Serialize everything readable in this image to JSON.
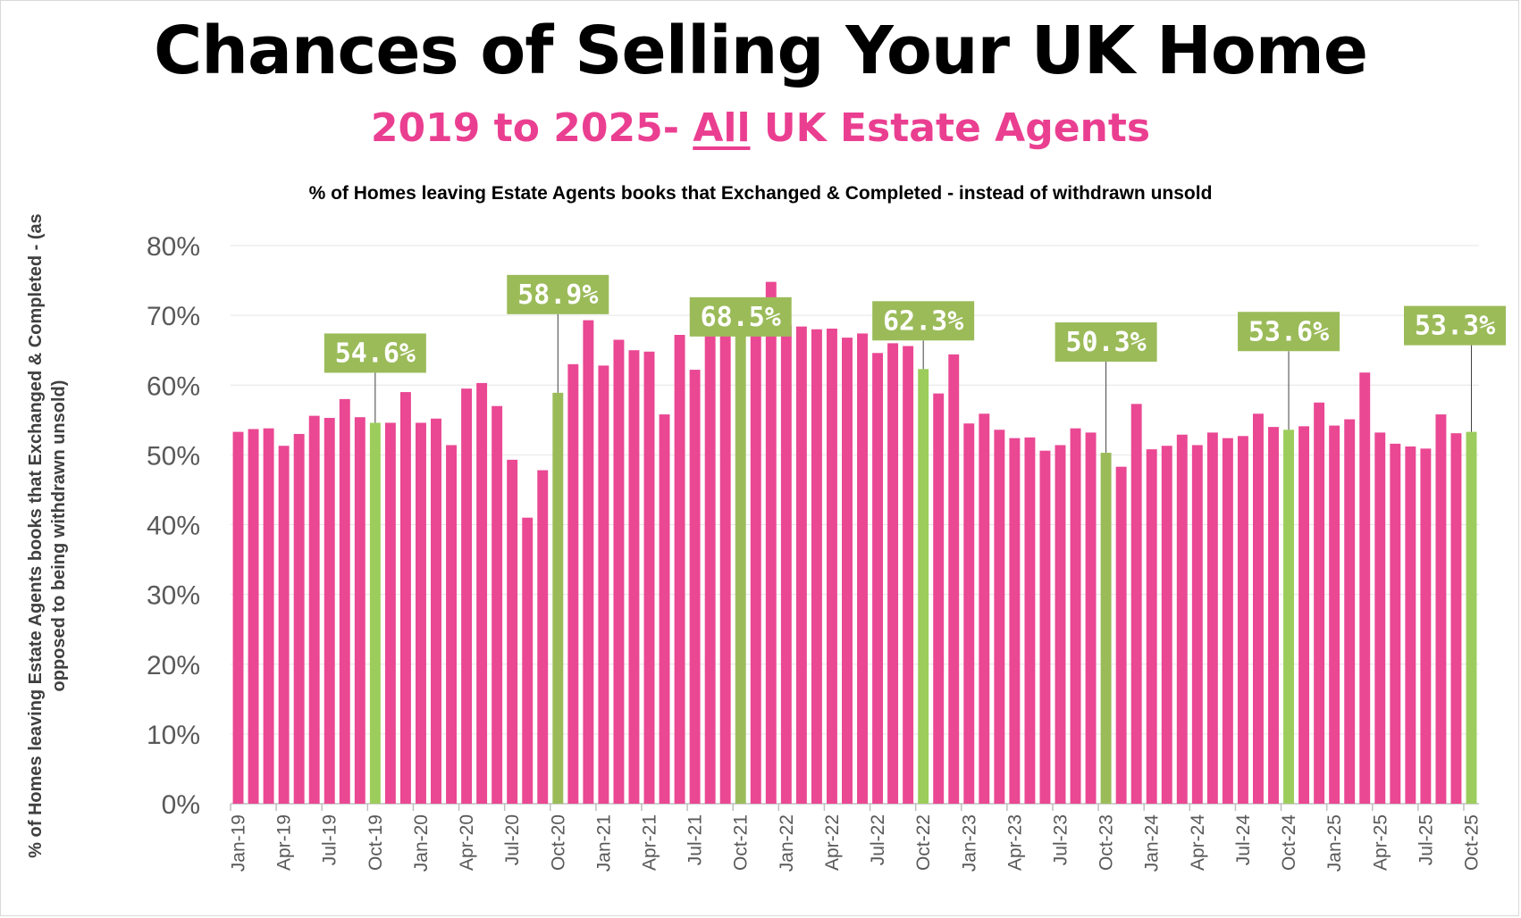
{
  "header": {
    "title": "Chances of Selling Your UK Home",
    "subtitle_pre": "2019 to 2025- ",
    "subtitle_underlined": "All",
    "subtitle_post": " UK Estate Agents"
  },
  "colors": {
    "bar": "#ea4893",
    "highlight": "#9bbb59",
    "highlight_bright": "#9ccd5c",
    "label_box": "#9bbb59",
    "label_text": "#ffffff",
    "grid": "#e6e6e6",
    "axis_text": "#595959"
  },
  "chart_data": {
    "type": "bar",
    "title": "% of Homes leaving Estate Agents books that Exchanged & Completed - instead of withdrawn unsold",
    "ylabel": "% of Homes leaving Estate Agents books that Exchanged & Completed - (as opposed to being withdrawn unsold)",
    "xlabel": "",
    "ylim": [
      0,
      80
    ],
    "yticks": [
      "0%",
      "10%",
      "20%",
      "30%",
      "40%",
      "50%",
      "60%",
      "70%",
      "80%"
    ],
    "grid": "horizontal",
    "legend": "none",
    "categories": [
      "Jan-19",
      "Feb-19",
      "Mar-19",
      "Apr-19",
      "May-19",
      "Jun-19",
      "Jul-19",
      "Aug-19",
      "Sep-19",
      "Oct-19",
      "Nov-19",
      "Dec-19",
      "Jan-20",
      "Feb-20",
      "Mar-20",
      "Apr-20",
      "May-20",
      "Jun-20",
      "Jul-20",
      "Aug-20",
      "Sep-20",
      "Oct-20",
      "Nov-20",
      "Dec-20",
      "Jan-21",
      "Feb-21",
      "Mar-21",
      "Apr-21",
      "May-21",
      "Jun-21",
      "Jul-21",
      "Aug-21",
      "Sep-21",
      "Oct-21",
      "Nov-21",
      "Dec-21",
      "Jan-22",
      "Feb-22",
      "Mar-22",
      "Apr-22",
      "May-22",
      "Jun-22",
      "Jul-22",
      "Aug-22",
      "Sep-22",
      "Oct-22",
      "Nov-22",
      "Dec-22",
      "Jan-23",
      "Feb-23",
      "Mar-23",
      "Apr-23",
      "May-23",
      "Jun-23",
      "Jul-23",
      "Aug-23",
      "Sep-23",
      "Oct-23",
      "Nov-23",
      "Dec-23",
      "Jan-24",
      "Feb-24",
      "Mar-24",
      "Apr-24",
      "May-24",
      "Jun-24",
      "Jul-24",
      "Aug-24",
      "Sep-24",
      "Oct-24",
      "Nov-24",
      "Dec-24",
      "Jan-25",
      "Feb-25",
      "Mar-25",
      "Apr-25",
      "May-25",
      "Jun-25",
      "Jul-25",
      "Aug-25",
      "Sep-25",
      "Oct-25"
    ],
    "tick_labels": [
      "Jan-19",
      "Apr-19",
      "Jul-19",
      "Oct-19",
      "Jan-20",
      "Apr-20",
      "Jul-20",
      "Oct-20",
      "Jan-21",
      "Apr-21",
      "Jul-21",
      "Oct-21",
      "Jan-22",
      "Apr-22",
      "Jul-22",
      "Oct-22",
      "Jan-23",
      "Apr-23",
      "Jul-23",
      "Oct-23",
      "Jan-24",
      "Apr-24",
      "Jul-24",
      "Oct-24",
      "Jan-25",
      "Apr-25",
      "Jul-25",
      "Oct-25"
    ],
    "values": [
      53.3,
      53.7,
      53.8,
      51.3,
      53.0,
      55.6,
      55.3,
      58.0,
      55.4,
      54.6,
      54.6,
      59.0,
      54.6,
      55.2,
      51.4,
      59.5,
      60.3,
      57.0,
      49.3,
      41.0,
      47.8,
      58.9,
      63.0,
      69.3,
      62.8,
      66.5,
      65.0,
      64.8,
      55.8,
      67.2,
      62.2,
      70.6,
      72.1,
      68.5,
      67.5,
      74.8,
      68.6,
      68.4,
      68.0,
      68.1,
      66.8,
      67.4,
      64.6,
      66.0,
      65.6,
      62.3,
      58.8,
      64.4,
      54.5,
      55.9,
      53.6,
      52.4,
      52.5,
      50.6,
      51.4,
      53.8,
      53.2,
      50.3,
      48.3,
      57.3,
      50.8,
      51.3,
      52.9,
      51.4,
      53.2,
      52.4,
      52.7,
      55.9,
      54.0,
      53.6,
      54.1,
      57.5,
      54.2,
      55.1,
      61.8,
      53.2,
      51.6,
      51.2,
      50.9,
      55.8,
      53.1,
      53.3
    ],
    "highlights": [
      {
        "category": "Oct-19",
        "label": "54.6%"
      },
      {
        "category": "Oct-20",
        "label": "58.9%"
      },
      {
        "category": "Oct-21",
        "label": "68.5%"
      },
      {
        "category": "Oct-22",
        "label": "62.3%"
      },
      {
        "category": "Oct-23",
        "label": "50.3%"
      },
      {
        "category": "Oct-24",
        "label": "53.6%"
      },
      {
        "category": "Oct-25",
        "label": "53.3%"
      }
    ]
  }
}
